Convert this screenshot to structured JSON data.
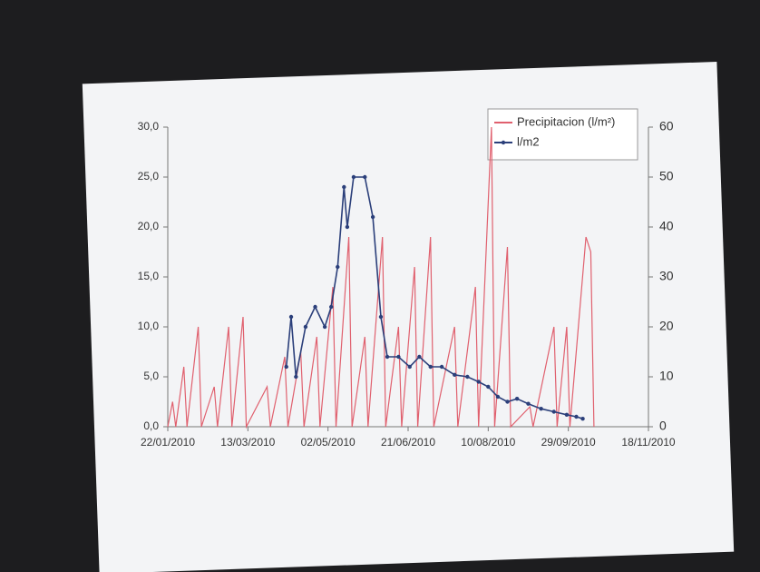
{
  "chart_data": {
    "type": "line",
    "xlim": [
      "2010-01-22",
      "2010-11-18"
    ],
    "xticks": [
      {
        "value": "2010-01-22",
        "label": "22/01/2010"
      },
      {
        "value": "2010-03-13",
        "label": "13/03/2010"
      },
      {
        "value": "2010-05-02",
        "label": "02/05/2010"
      },
      {
        "value": "2010-06-21",
        "label": "21/06/2010"
      },
      {
        "value": "2010-08-10",
        "label": "10/08/2010"
      },
      {
        "value": "2010-09-29",
        "label": "29/09/2010"
      },
      {
        "value": "2010-11-18",
        "label": "18/11/2010"
      }
    ],
    "ylim": [
      0,
      30
    ],
    "yticks": [
      {
        "value": 0,
        "label": "0,0"
      },
      {
        "value": 5,
        "label": "5,0"
      },
      {
        "value": 10,
        "label": "10,0"
      },
      {
        "value": 15,
        "label": "15,0"
      },
      {
        "value": 20,
        "label": "20,0"
      },
      {
        "value": 25,
        "label": "25,0"
      },
      {
        "value": 30,
        "label": "30,0"
      }
    ],
    "y2lim": [
      0,
      60
    ],
    "y2ticks": [
      0,
      10,
      20,
      30,
      40,
      50,
      60
    ],
    "legend": "top-right",
    "series": [
      {
        "name": "Precipitacion (l/m²)",
        "color": "#e0606e",
        "axis": "y2",
        "marker": false,
        "x": [
          "2010-01-22",
          "2010-01-25",
          "2010-01-27",
          "2010-02-01",
          "2010-02-03",
          "2010-02-10",
          "2010-02-12",
          "2010-02-20",
          "2010-02-22",
          "2010-03-01",
          "2010-03-03",
          "2010-03-10",
          "2010-03-12",
          "2010-03-25",
          "2010-03-27",
          "2010-04-05",
          "2010-04-07",
          "2010-04-15",
          "2010-04-17",
          "2010-04-25",
          "2010-04-27",
          "2010-05-05",
          "2010-05-07",
          "2010-05-15",
          "2010-05-17",
          "2010-05-25",
          "2010-05-27",
          "2010-06-05",
          "2010-06-07",
          "2010-06-15",
          "2010-06-17",
          "2010-06-25",
          "2010-06-27",
          "2010-07-05",
          "2010-07-07",
          "2010-07-20",
          "2010-07-22",
          "2010-08-02",
          "2010-08-04",
          "2010-08-12",
          "2010-08-14",
          "2010-08-22",
          "2010-08-24",
          "2010-09-05",
          "2010-09-07",
          "2010-09-20",
          "2010-09-22",
          "2010-09-28",
          "2010-09-30",
          "2010-10-10",
          "2010-10-13",
          "2010-10-15"
        ],
        "values": [
          0,
          5,
          0,
          12,
          0,
          20,
          0,
          8,
          0,
          20,
          0,
          22,
          0,
          8,
          0,
          14,
          0,
          15,
          0,
          18,
          0,
          28,
          0,
          38,
          0,
          18,
          0,
          38,
          0,
          20,
          0,
          32,
          0,
          38,
          0,
          20,
          0,
          28,
          0,
          60,
          0,
          36,
          0,
          4,
          0,
          20,
          0,
          20,
          0,
          38,
          35,
          0
        ]
      },
      {
        "name": "l/m2",
        "color": "#2b3f7a",
        "axis": "y",
        "marker": true,
        "x": [
          "2010-04-06",
          "2010-04-09",
          "2010-04-12",
          "2010-04-18",
          "2010-04-24",
          "2010-04-30",
          "2010-05-04",
          "2010-05-08",
          "2010-05-12",
          "2010-05-14",
          "2010-05-18",
          "2010-05-25",
          "2010-05-30",
          "2010-06-04",
          "2010-06-08",
          "2010-06-15",
          "2010-06-22",
          "2010-06-28",
          "2010-07-05",
          "2010-07-12",
          "2010-07-20",
          "2010-07-28",
          "2010-08-04",
          "2010-08-10",
          "2010-08-16",
          "2010-08-22",
          "2010-08-28",
          "2010-09-04",
          "2010-09-12",
          "2010-09-20",
          "2010-09-28",
          "2010-10-04",
          "2010-10-08"
        ],
        "values": [
          6,
          11,
          5,
          10,
          12,
          10,
          12,
          16,
          24,
          20,
          25,
          25,
          21,
          11,
          7,
          7,
          6,
          7,
          6,
          6,
          5.2,
          5,
          4.5,
          4,
          3,
          2.5,
          2.8,
          2.3,
          1.8,
          1.5,
          1.2,
          1,
          0.8
        ]
      }
    ]
  }
}
